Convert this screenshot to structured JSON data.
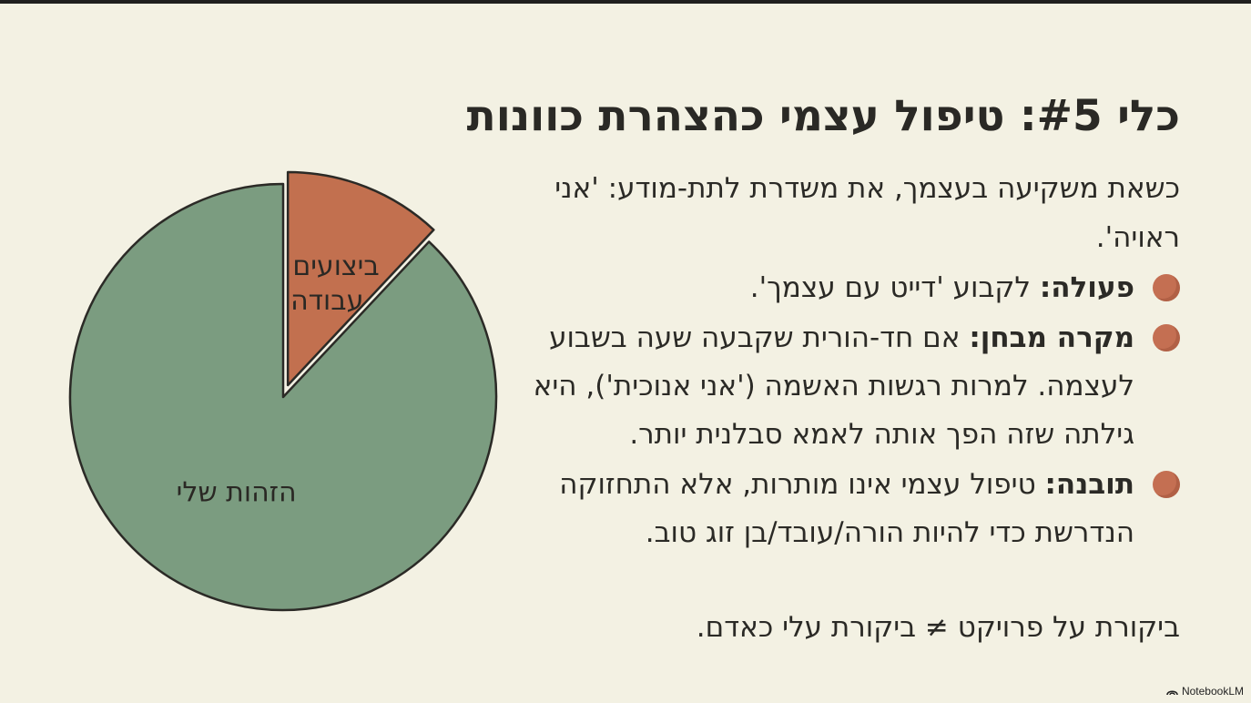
{
  "slide": {
    "title": "כלי #5: טיפול עצמי כהצהרת כוונות",
    "intro": "כשאת משקיעה בעצמך, את משדרת לתת-מודע: 'אני ראויה'.",
    "bullets": [
      {
        "head": "פעולה:",
        "text": " לקבוע 'דייט עם עצמך'."
      },
      {
        "head": "מקרה מבחן:",
        "text": " אם חד-הורית שקבעה שעה בשבוע לעצמה. למרות רגשות האשמה ('אני אנוכית'), היא גילתה שזה הפך אותה לאמא סבלנית יותר."
      },
      {
        "head": "תובנה:",
        "text": " טיפול עצמי אינו מותרות, אלא התחזוקה הנדרשת כדי להיות הורה/עובד/בן זוג טוב."
      }
    ],
    "closing": "ביקורת על פרויקט ≠ ביקורת עלי כאדם."
  },
  "chart_data": {
    "type": "pie",
    "slices": [
      {
        "label": "ביצועים / עבודה",
        "value": 12,
        "exploded": true
      },
      {
        "label": "הזהות שלי",
        "value": 88,
        "exploded": false
      }
    ],
    "colors": {
      "slice_small": "#c2704f",
      "slice_large": "#7b9c80",
      "outline": "#2b2a26"
    }
  },
  "brand": {
    "label": "NotebookLM",
    "icon": "notebooklm-icon"
  }
}
